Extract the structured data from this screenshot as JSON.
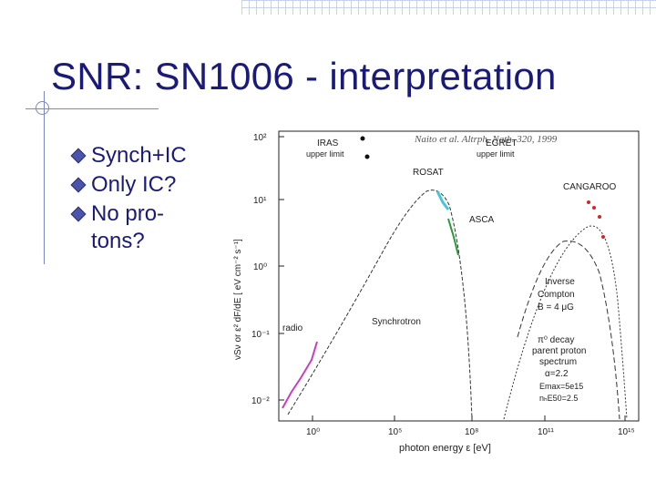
{
  "slide": {
    "title": "SNR: SN1006 - interpretation",
    "bullets": [
      "Synch+IC",
      "Only IC?",
      "No pro-\ntons?"
    ]
  },
  "figure": {
    "citation": "Naito et al. Altrph. Nath. 320, 1999",
    "xlabel": "photon energy ε [eV]",
    "ylabel": "νSν  or  ε² dF/dE  [ eV cm⁻² s⁻¹]",
    "y_ticks": [
      "10²",
      "10¹",
      "10⁰",
      "10⁻¹",
      "10⁻²"
    ],
    "x_ticks": [
      "10⁰",
      "10⁵",
      "10⁸",
      "10¹¹",
      "10¹⁵"
    ],
    "labels": {
      "iras": "IRAS",
      "iras_ul": "upper limit",
      "egret": "EGRET",
      "egret_ul": "upper limit",
      "rosat": "ROSAT",
      "asca": "ASCA",
      "cangaroo": "CANGAROO",
      "radio": "radio",
      "synchrotron": "Synchrotron",
      "ic1": "Inverse",
      "ic2": "Compton",
      "ic3": "B = 4 μG",
      "pi1": "π⁰ decay",
      "pi2": "parent proton",
      "pi3": "spectrum",
      "pi4": "α=2.2",
      "pi5": "Emax=5e15",
      "pi6": "nₕE50=2.5"
    },
    "colors": {
      "radio": "#c83cc8",
      "rosat": "#40c8d8",
      "asca": "#2a9a3a",
      "cangaroo": "#e02020"
    }
  }
}
